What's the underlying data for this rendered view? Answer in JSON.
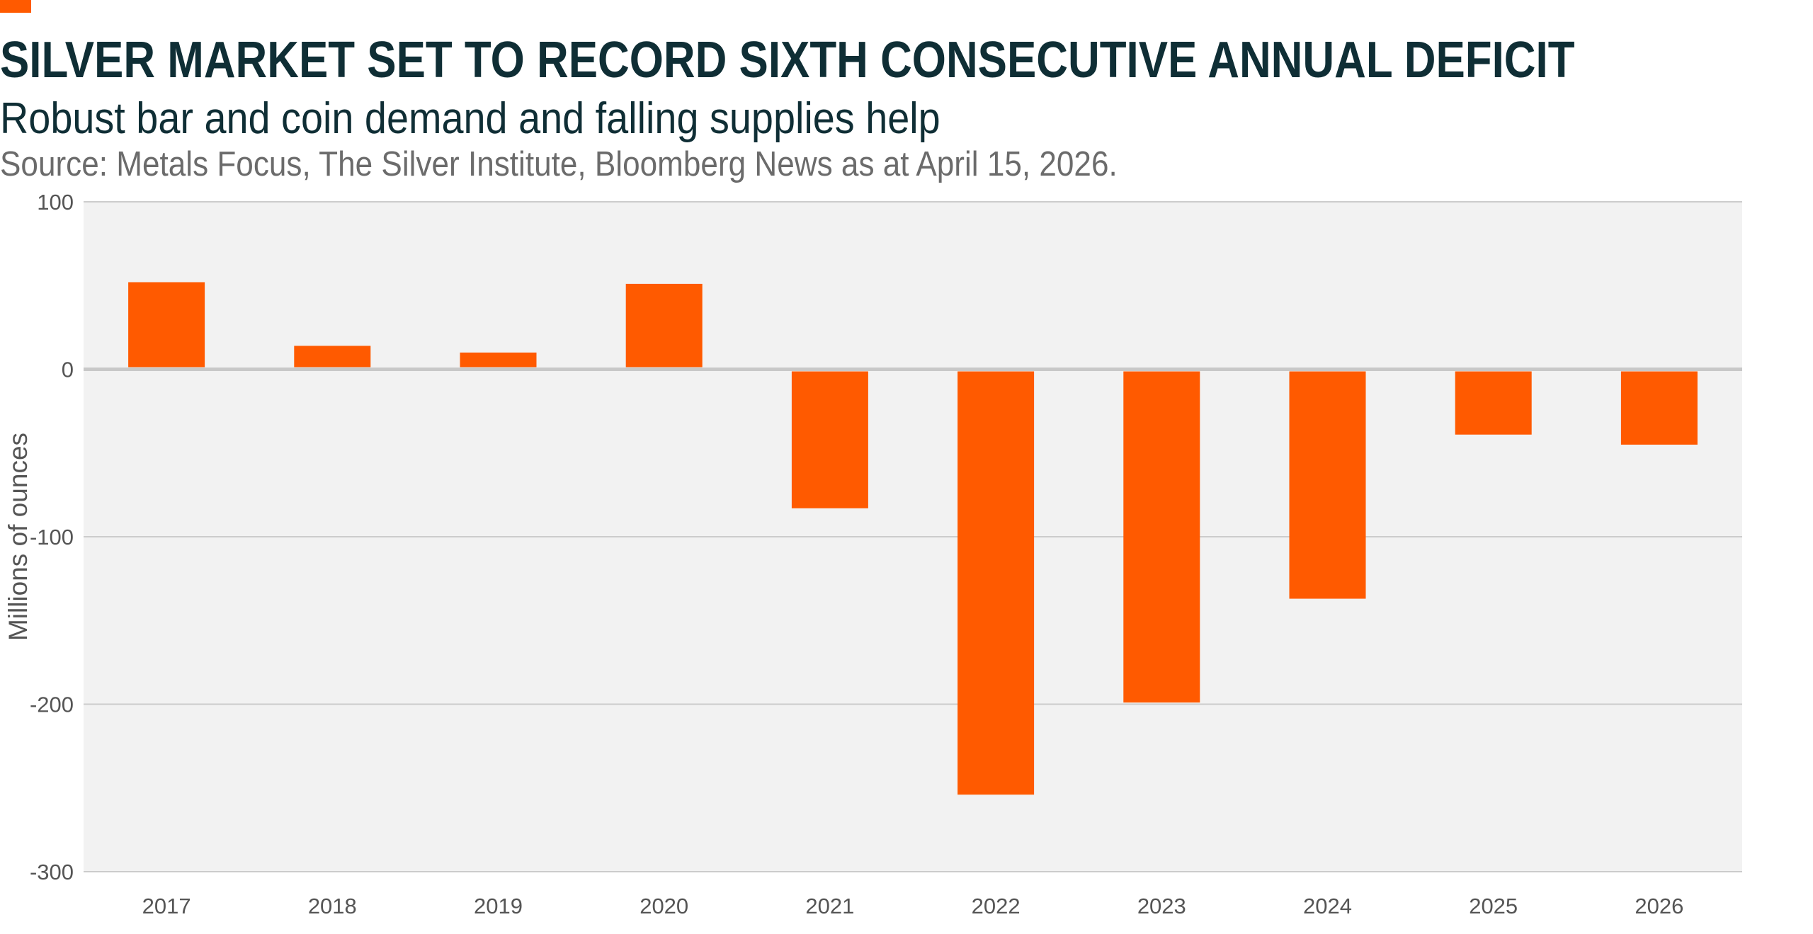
{
  "header": {
    "title": "SILVER MARKET SET TO RECORD SIXTH CONSECUTIVE ANNUAL DEFICIT",
    "subtitle": "Robust bar and coin demand and falling supplies help",
    "source": "Source: Metals Focus, The Silver Institute, Bloomberg News as at April 15, 2026."
  },
  "colors": {
    "accent": "#ff5a00",
    "bar": "#ff5a00",
    "plot_background": "#f2f2f2",
    "gridline": "#cccccc",
    "title": "#0f2e35",
    "source_text": "#6b6b6b"
  },
  "chart_data": {
    "type": "bar",
    "title": "SILVER MARKET SET TO RECORD SIXTH CONSECUTIVE ANNUAL DEFICIT",
    "subtitle": "Robust bar and coin demand and falling supplies help",
    "categories": [
      "2017",
      "2018",
      "2019",
      "2020",
      "2021",
      "2022",
      "2023",
      "2024",
      "2025",
      "2026"
    ],
    "values": [
      52,
      14,
      10,
      51,
      -83,
      -254,
      -199,
      -137,
      -39,
      -45
    ],
    "xlabel": "",
    "ylabel": "Millions of ounces",
    "ylim": [
      -300,
      100
    ],
    "yticks": [
      100,
      0,
      -100,
      -200,
      -300
    ],
    "ytick_labels": [
      "100",
      "0",
      "-100",
      "-200",
      "-300"
    ],
    "grid": true,
    "legend": "none"
  }
}
